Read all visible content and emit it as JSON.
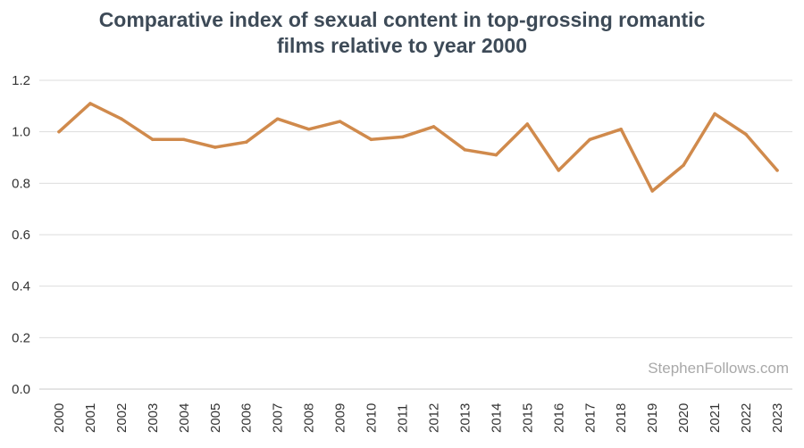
{
  "chart_data": {
    "type": "line",
    "title_lines": [
      "Comparative index of sexual content in top-grossing romantic",
      "films relative to year 2000"
    ],
    "xlabel": "",
    "ylabel": "",
    "x": [
      "2000",
      "2001",
      "2002",
      "2003",
      "2004",
      "2005",
      "2006",
      "2007",
      "2008",
      "2009",
      "2010",
      "2011",
      "2012",
      "2013",
      "2014",
      "2015",
      "2016",
      "2017",
      "2018",
      "2019",
      "2020",
      "2021",
      "2022",
      "2023"
    ],
    "series": [
      {
        "values": [
          1.0,
          1.11,
          1.05,
          0.97,
          0.97,
          0.94,
          0.96,
          1.05,
          1.01,
          1.04,
          0.97,
          0.98,
          1.02,
          0.93,
          0.91,
          1.03,
          0.85,
          0.97,
          1.01,
          0.77,
          0.87,
          1.07,
          0.99,
          0.85
        ]
      }
    ],
    "yticks": [
      "0.0",
      "0.2",
      "0.4",
      "0.6",
      "0.8",
      "1.0",
      "1.2"
    ],
    "ylim": [
      0,
      1.2
    ],
    "grid": true,
    "line_color": "#d08a4c",
    "watermark": "StephenFollows.com"
  }
}
